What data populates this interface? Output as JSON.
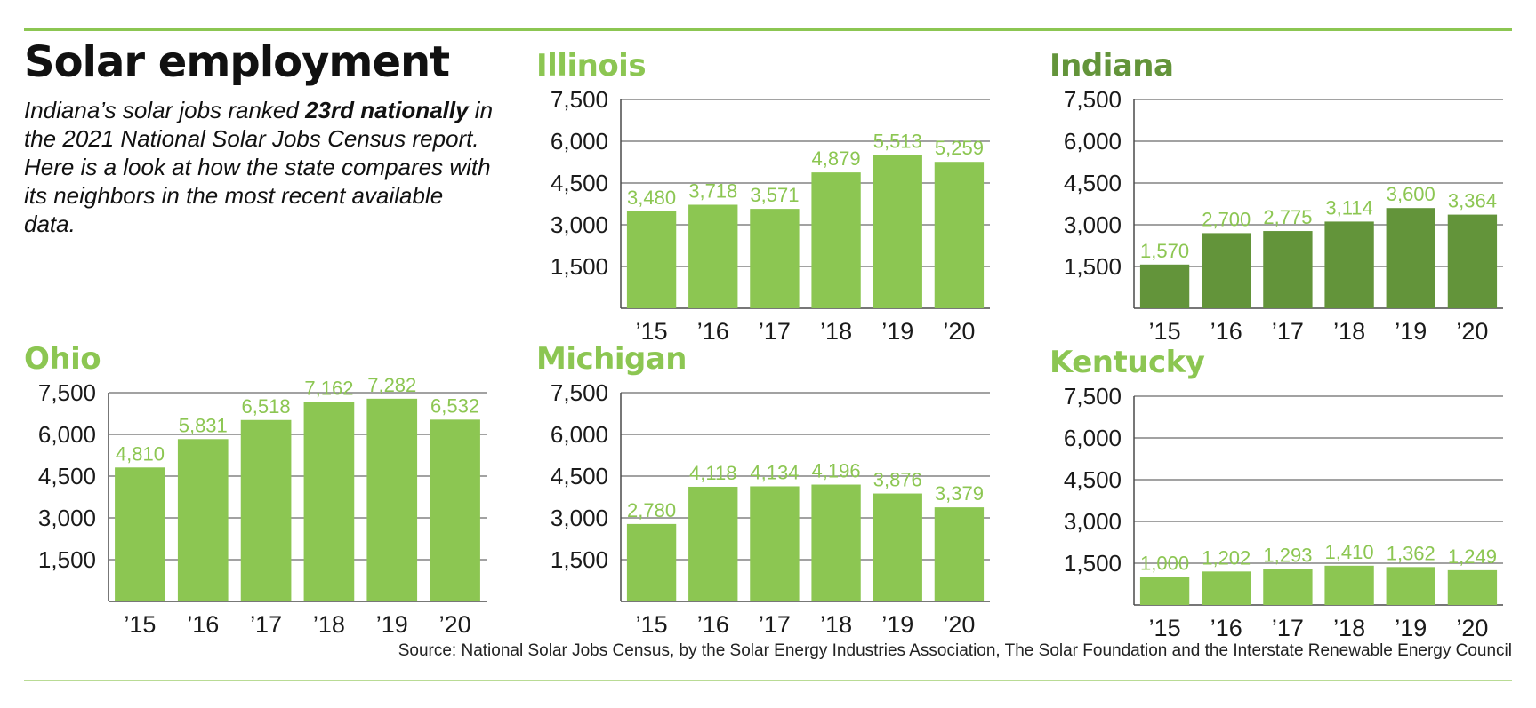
{
  "header": {
    "title": "Solar employment",
    "intro_1": "Indiana’s solar jobs ranked ",
    "intro_bold": "23rd nationally",
    "intro_2": " in the 2021 National Solar Jobs Census report. Here is a look at how the state compares with its neighbors in the most recent available data."
  },
  "source": "Source: National Solar Jobs Census, by the Solar Energy Industries Association, The Solar Foundation and the Interstate Renewable Energy Council",
  "colors": {
    "light_green": "#8cc652",
    "dark_green": "#63943a",
    "rule_green": "#8cc652"
  },
  "chart_data": [
    {
      "type": "bar",
      "title": "Illinois",
      "color": "#8cc652",
      "categories": [
        "’15",
        "’16",
        "’17",
        "’18",
        "’19",
        "’20"
      ],
      "values": [
        3480,
        3718,
        3571,
        4879,
        5513,
        5259
      ],
      "value_labels": [
        "3,480",
        "3,718",
        "3,571",
        "4,879",
        "5,513",
        "5,259"
      ],
      "yticks": [
        "7,500",
        "6,000",
        "4,500",
        "3,000",
        "1,500"
      ],
      "ylim": [
        0,
        7500
      ]
    },
    {
      "type": "bar",
      "title": "Indiana",
      "color": "#63943a",
      "categories": [
        "’15",
        "’16",
        "’17",
        "’18",
        "’19",
        "’20"
      ],
      "values": [
        1570,
        2700,
        2775,
        3114,
        3600,
        3364
      ],
      "value_labels": [
        "1,570",
        "2,700",
        "2,775",
        "3,114",
        "3,600",
        "3,364"
      ],
      "yticks": [
        "7,500",
        "6,000",
        "4,500",
        "3,000",
        "1,500"
      ],
      "ylim": [
        0,
        7500
      ]
    },
    {
      "type": "bar",
      "title": "Ohio",
      "color": "#8cc652",
      "categories": [
        "’15",
        "’16",
        "’17",
        "’18",
        "’19",
        "’20"
      ],
      "values": [
        4810,
        5831,
        6518,
        7162,
        7282,
        6532
      ],
      "value_labels": [
        "4,810",
        "5,831",
        "6,518",
        "7,162",
        "7,282",
        "6,532"
      ],
      "yticks": [
        "7,500",
        "6,000",
        "4,500",
        "3,000",
        "1,500"
      ],
      "ylim": [
        0,
        7500
      ]
    },
    {
      "type": "bar",
      "title": "Michigan",
      "color": "#8cc652",
      "categories": [
        "’15",
        "’16",
        "’17",
        "’18",
        "’19",
        "’20"
      ],
      "values": [
        2780,
        4118,
        4134,
        4196,
        3876,
        3379
      ],
      "value_labels": [
        "2,780",
        "4,118",
        "4,134",
        "4,196",
        "3,876",
        "3,379"
      ],
      "yticks": [
        "7,500",
        "6,000",
        "4,500",
        "3,000",
        "1,500"
      ],
      "ylim": [
        0,
        7500
      ]
    },
    {
      "type": "bar",
      "title": "Kentucky",
      "color": "#8cc652",
      "categories": [
        "’15",
        "’16",
        "’17",
        "’18",
        "’19",
        "’20"
      ],
      "values": [
        1000,
        1202,
        1293,
        1410,
        1362,
        1249
      ],
      "value_labels": [
        "1,000",
        "1,202",
        "1,293",
        "1,410",
        "1,362",
        "1,249"
      ],
      "yticks": [
        "7,500",
        "6,000",
        "4,500",
        "3,000",
        "1,500"
      ],
      "ylim": [
        0,
        7500
      ]
    }
  ]
}
